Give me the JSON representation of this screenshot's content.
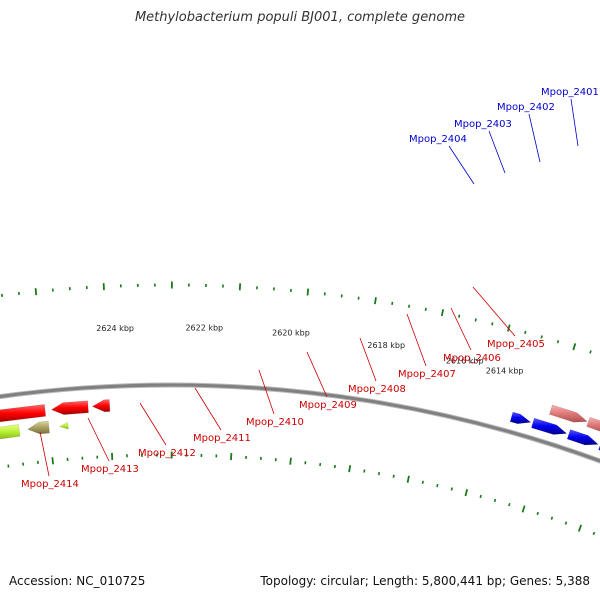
{
  "title": "Methylobacterium populi BJ001, complete genome",
  "accession_text": "Accession: NC_010725",
  "summary_text": "Topology: circular; Length: 5,800,441 bp; Genes: 5,388",
  "colors": {
    "forward_label": "#0000cc",
    "reverse_label": "#cc0000",
    "tick": "#1a7a1a",
    "backbone": "#808080"
  },
  "kbp_labels": [
    "2614 kbp",
    "2616 kbp",
    "2618 kbp",
    "2620 kbp",
    "2622 kbp",
    "2624 kbp"
  ],
  "forward_genes": [
    "Mpop_2401",
    "Mpop_2402",
    "Mpop_2403",
    "Mpop_2404"
  ],
  "reverse_genes": [
    "Mpop_2405",
    "Mpop_2406",
    "Mpop_2407",
    "Mpop_2408",
    "Mpop_2409",
    "Mpop_2410",
    "Mpop_2411",
    "Mpop_2412",
    "Mpop_2413",
    "Mpop_2414"
  ]
}
